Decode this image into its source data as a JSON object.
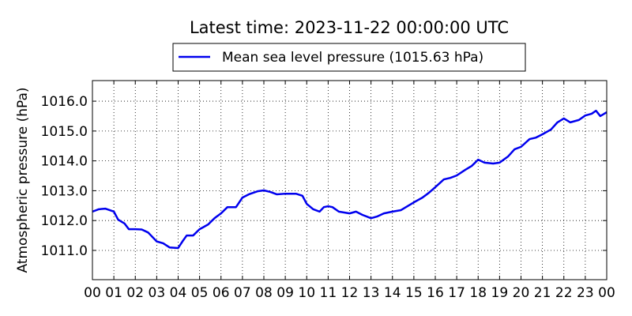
{
  "chart_data": {
    "type": "line",
    "title": "Latest time: 2023-11-22 00:00:00 UTC",
    "ylabel": "Atmospheric pressure (hPa)",
    "xlim": [
      0,
      24
    ],
    "ylim": [
      1010.02,
      1016.69
    ],
    "xticks": [
      {
        "value": 0,
        "label": "00"
      },
      {
        "value": 1,
        "label": "01"
      },
      {
        "value": 2,
        "label": "02"
      },
      {
        "value": 3,
        "label": "03"
      },
      {
        "value": 4,
        "label": "04"
      },
      {
        "value": 5,
        "label": "05"
      },
      {
        "value": 6,
        "label": "06"
      },
      {
        "value": 7,
        "label": "07"
      },
      {
        "value": 8,
        "label": "08"
      },
      {
        "value": 9,
        "label": "09"
      },
      {
        "value": 10,
        "label": "10"
      },
      {
        "value": 11,
        "label": "11"
      },
      {
        "value": 12,
        "label": "12"
      },
      {
        "value": 13,
        "label": "13"
      },
      {
        "value": 14,
        "label": "14"
      },
      {
        "value": 15,
        "label": "15"
      },
      {
        "value": 16,
        "label": "16"
      },
      {
        "value": 17,
        "label": "17"
      },
      {
        "value": 18,
        "label": "18"
      },
      {
        "value": 19,
        "label": "19"
      },
      {
        "value": 20,
        "label": "20"
      },
      {
        "value": 21,
        "label": "21"
      },
      {
        "value": 22,
        "label": "22"
      },
      {
        "value": 23,
        "label": "23"
      },
      {
        "value": 24,
        "label": "00"
      }
    ],
    "yticks": [
      {
        "value": 1011,
        "label": "1011.0"
      },
      {
        "value": 1012,
        "label": "1012.0"
      },
      {
        "value": 1013,
        "label": "1013.0"
      },
      {
        "value": 1014,
        "label": "1014.0"
      },
      {
        "value": 1015,
        "label": "1015.0"
      },
      {
        "value": 1016,
        "label": "1016.0"
      }
    ],
    "grid": true,
    "legend": "top",
    "series": [
      {
        "name": "Mean sea level pressure (1015.63 hPa)",
        "color": "#0000ee",
        "x": [
          0,
          0.3,
          0.6,
          1.0,
          1.2,
          1.5,
          1.7,
          2.0,
          2.3,
          2.6,
          3.0,
          3.3,
          3.6,
          4.0,
          4.2,
          4.4,
          4.7,
          5.0,
          5.4,
          5.7,
          6.0,
          6.3,
          6.7,
          7.0,
          7.3,
          7.7,
          8.0,
          8.3,
          8.6,
          9.0,
          9.5,
          9.8,
          10.0,
          10.3,
          10.6,
          10.8,
          11.0,
          11.2,
          11.5,
          12.0,
          12.3,
          12.6,
          13.0,
          13.3,
          13.6,
          14.0,
          14.4,
          14.7,
          15.0,
          15.4,
          15.7,
          16.0,
          16.4,
          16.7,
          17.0,
          17.4,
          17.7,
          18.0,
          18.3,
          18.7,
          19.0,
          19.4,
          19.7,
          20.0,
          20.4,
          20.7,
          21.0,
          21.4,
          21.7,
          22.0,
          22.3,
          22.7,
          23.0,
          23.3,
          23.5,
          23.7,
          24.0
        ],
        "values": [
          1012.3,
          1012.38,
          1012.4,
          1012.3,
          1012.03,
          1011.9,
          1011.71,
          1011.71,
          1011.7,
          1011.6,
          1011.3,
          1011.24,
          1011.1,
          1011.08,
          1011.3,
          1011.5,
          1011.5,
          1011.71,
          1011.87,
          1012.08,
          1012.24,
          1012.45,
          1012.45,
          1012.77,
          1012.88,
          1012.98,
          1013.01,
          1012.96,
          1012.88,
          1012.9,
          1012.9,
          1012.83,
          1012.56,
          1012.38,
          1012.3,
          1012.45,
          1012.48,
          1012.45,
          1012.3,
          1012.24,
          1012.3,
          1012.19,
          1012.08,
          1012.14,
          1012.24,
          1012.3,
          1012.35,
          1012.48,
          1012.61,
          1012.77,
          1012.93,
          1013.12,
          1013.38,
          1013.43,
          1013.51,
          1013.7,
          1013.83,
          1014.04,
          1013.94,
          1013.91,
          1013.94,
          1014.15,
          1014.39,
          1014.47,
          1014.73,
          1014.78,
          1014.89,
          1015.05,
          1015.29,
          1015.42,
          1015.29,
          1015.37,
          1015.52,
          1015.58,
          1015.68,
          1015.5,
          1015.63
        ]
      }
    ]
  }
}
